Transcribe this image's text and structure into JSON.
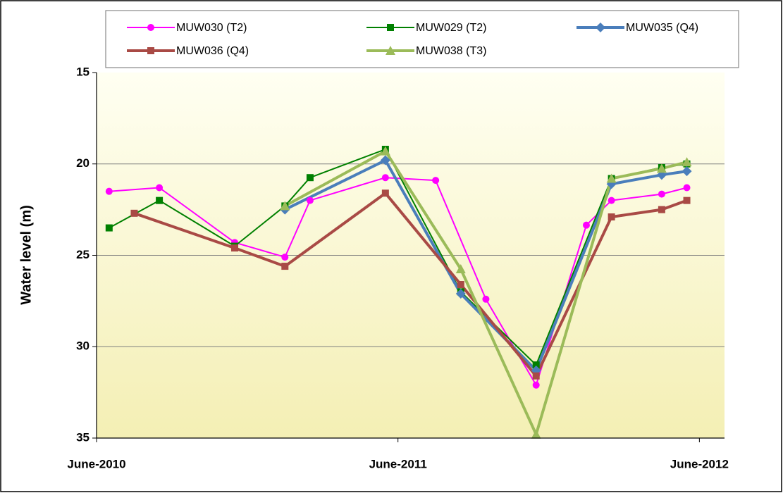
{
  "chart_data": {
    "type": "line",
    "y_label": "Water level  (m)",
    "ylim": [
      15,
      35
    ],
    "y_inverted": true,
    "yticks": [
      15,
      20,
      25,
      30,
      35
    ],
    "xlim": [
      "2010-06",
      "2012-07"
    ],
    "xticks": [
      {
        "value": "2010-06",
        "label": "June-2010"
      },
      {
        "value": "2011-06",
        "label": "June-2011"
      },
      {
        "value": "2012-06",
        "label": "June-2012"
      }
    ],
    "grid": true,
    "legend": "top",
    "series": [
      {
        "name": "MUW030 (T2)",
        "color": "#ff00ff",
        "marker": "circle",
        "width": 2,
        "x": [
          "2010-06",
          "2010-08",
          "2010-11",
          "2011-01",
          "2011-02",
          "2011-05",
          "2011-07",
          "2011-09",
          "2011-11",
          "2012-01",
          "2012-02",
          "2012-04",
          "2012-05"
        ],
        "values": [
          21.5,
          21.3,
          24.3,
          25.1,
          22.0,
          20.75,
          20.9,
          27.4,
          32.1,
          23.35,
          22.0,
          21.65,
          21.3
        ]
      },
      {
        "name": "MUW029 (T2)",
        "color": "#008000",
        "marker": "square",
        "width": 2,
        "x": [
          "2010-06",
          "2010-08",
          "2010-11",
          "2011-01",
          "2011-02",
          "2011-05",
          "2011-08",
          "2011-11",
          "2012-02",
          "2012-04",
          "2012-05"
        ],
        "values": [
          23.5,
          22.0,
          24.5,
          22.3,
          20.75,
          19.2,
          27.0,
          31.0,
          20.8,
          20.2,
          20.0
        ]
      },
      {
        "name": "MUW035 (Q4)",
        "color": "#4a7ebb",
        "marker": "diamond",
        "width": 4,
        "x": [
          "2011-01",
          "2011-05",
          "2011-08",
          "2011-11",
          "2012-02",
          "2012-04",
          "2012-05"
        ],
        "values": [
          22.5,
          19.8,
          27.1,
          31.3,
          21.1,
          20.6,
          20.4
        ]
      },
      {
        "name": "MUW036 (Q4)",
        "color": "#a94a45",
        "marker": "square",
        "width": 4,
        "x": [
          "2010-07",
          "2010-11",
          "2011-01",
          "2011-05",
          "2011-08",
          "2011-11",
          "2012-02",
          "2012-04",
          "2012-05"
        ],
        "values": [
          22.7,
          24.6,
          25.6,
          21.6,
          26.6,
          31.6,
          22.9,
          22.5,
          22.0
        ]
      },
      {
        "name": "MUW038 (T3)",
        "color": "#9bbb59",
        "marker": "triangle",
        "width": 4,
        "x": [
          "2011-01",
          "2011-05",
          "2011-08",
          "2011-11",
          "2012-02",
          "2012-04",
          "2012-05"
        ],
        "values": [
          22.3,
          19.3,
          25.75,
          34.8,
          20.8,
          20.25,
          19.9
        ]
      }
    ]
  }
}
